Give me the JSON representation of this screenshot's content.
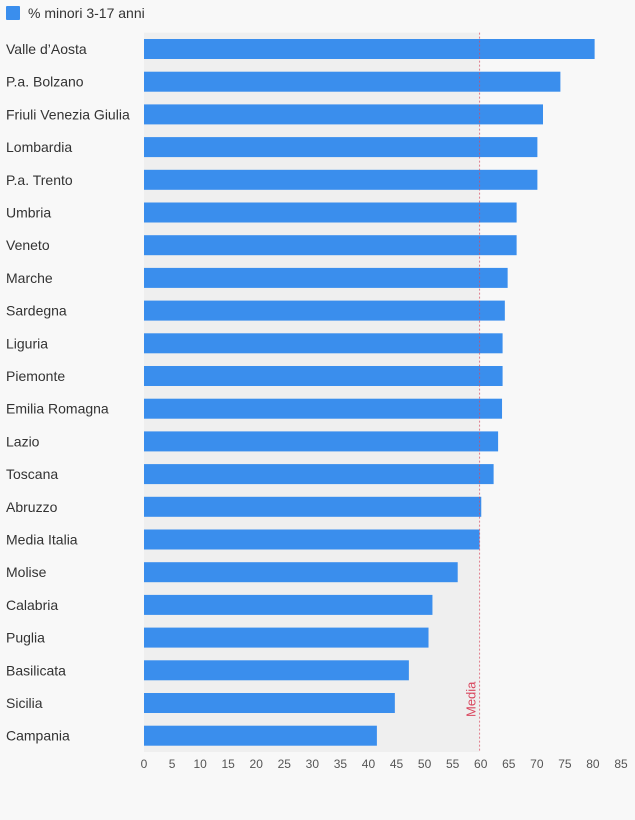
{
  "chart_data": {
    "type": "bar",
    "orientation": "horizontal",
    "categories": [
      "Valle d’Aosta",
      "P.a. Bolzano",
      "Friuli Venezia Giulia",
      "Lombardia",
      "P.a. Trento",
      "Umbria",
      "Veneto",
      "Marche",
      "Sardegna",
      "Liguria",
      "Piemonte",
      "Emilia Romagna",
      "Lazio",
      "Toscana",
      "Abruzzo",
      "Media Italia",
      "Molise",
      "Calabria",
      "Puglia",
      "Basilicata",
      "Sicilia",
      "Campania"
    ],
    "series": [
      {
        "name": "% minori 3-17 anni",
        "values": [
          80.3,
          74.2,
          71.1,
          70.1,
          70.1,
          66.4,
          66.4,
          64.8,
          64.3,
          63.9,
          63.9,
          63.8,
          63.1,
          62.3,
          60.1,
          59.8,
          55.9,
          51.4,
          50.7,
          47.2,
          44.7,
          41.5
        ]
      }
    ],
    "xlim": [
      0,
      85
    ],
    "xticks": [
      0,
      5,
      10,
      15,
      20,
      25,
      30,
      35,
      40,
      45,
      50,
      55,
      60,
      65,
      70,
      75,
      80,
      85
    ],
    "reference_line": {
      "label": "Media",
      "value": 59.8
    },
    "bar_color": "#3a8eed",
    "reference_color": "#d9485f",
    "shade_color": "#efefef",
    "legend_position": "top-left",
    "grid": false
  }
}
